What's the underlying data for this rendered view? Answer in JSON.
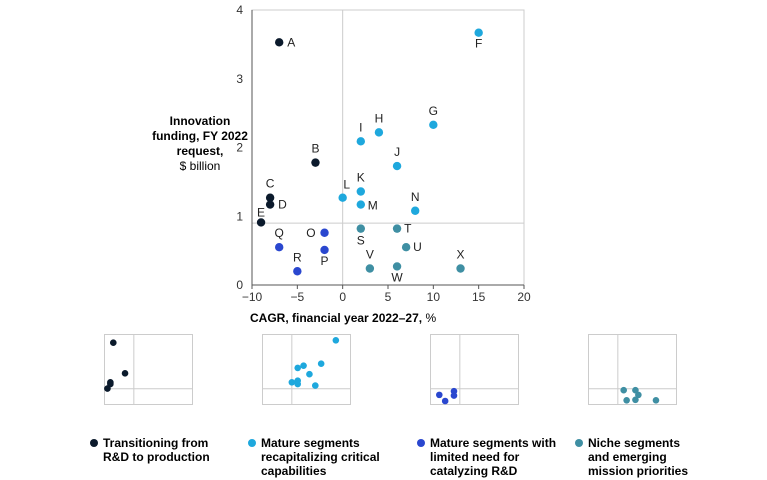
{
  "colors": {
    "transitioning": "#0b1a2c",
    "mature_recap": "#1ea8dd",
    "mature_limited": "#2a47cf",
    "niche": "#3f8fa3",
    "grid": "#cccccc",
    "axis": "#555555"
  },
  "axis_labels": {
    "y_bold": "Innovation funding, FY 2022 request,",
    "y_unit": "$ billion",
    "x_bold": "CAGR, financial year 2022–27,",
    "x_unit": "%"
  },
  "legend": [
    {
      "group": "transitioning",
      "label": "Transitioning from\nR&D to production"
    },
    {
      "group": "mature_recap",
      "label": "Mature segments\nrecapitalizing critical\ncapabilities"
    },
    {
      "group": "mature_limited",
      "label": "Mature segments with\nlimited need for\ncatalyzing R&D"
    },
    {
      "group": "niche",
      "label": "Niche segments\nand emerging\nmission priorities"
    }
  ],
  "chart_data": {
    "type": "scatter",
    "xlabel": "CAGR, financial year 2022–27, %",
    "ylabel": "Innovation funding, FY 2022 request, $ billion",
    "xlim": [
      -10,
      20
    ],
    "ylim": [
      0,
      4
    ],
    "xticks": [
      -10,
      -5,
      0,
      5,
      10,
      15,
      20
    ],
    "yticks": [
      0,
      1,
      2,
      3,
      4
    ],
    "reference_lines": {
      "x": 0,
      "y": 0.9
    },
    "grid": false,
    "points": [
      {
        "label": "A",
        "x": -7,
        "y": 3.53,
        "group": "transitioning"
      },
      {
        "label": "B",
        "x": -3,
        "y": 1.78,
        "group": "transitioning"
      },
      {
        "label": "C",
        "x": -8,
        "y": 1.27,
        "group": "transitioning"
      },
      {
        "label": "D",
        "x": -8,
        "y": 1.17,
        "group": "transitioning"
      },
      {
        "label": "E",
        "x": -9,
        "y": 0.91,
        "group": "transitioning"
      },
      {
        "label": "F",
        "x": 15,
        "y": 3.67,
        "group": "mature_recap"
      },
      {
        "label": "G",
        "x": 10,
        "y": 2.33,
        "group": "mature_recap"
      },
      {
        "label": "H",
        "x": 4,
        "y": 2.22,
        "group": "mature_recap"
      },
      {
        "label": "I",
        "x": 2,
        "y": 2.09,
        "group": "mature_recap"
      },
      {
        "label": "J",
        "x": 6,
        "y": 1.73,
        "group": "mature_recap"
      },
      {
        "label": "K",
        "x": 2,
        "y": 1.36,
        "group": "mature_recap"
      },
      {
        "label": "L",
        "x": 0,
        "y": 1.27,
        "group": "mature_recap"
      },
      {
        "label": "M",
        "x": 2,
        "y": 1.17,
        "group": "mature_recap"
      },
      {
        "label": "N",
        "x": 8,
        "y": 1.08,
        "group": "mature_recap"
      },
      {
        "label": "O",
        "x": -2,
        "y": 0.76,
        "group": "mature_limited"
      },
      {
        "label": "P",
        "x": -2,
        "y": 0.51,
        "group": "mature_limited"
      },
      {
        "label": "Q",
        "x": -7,
        "y": 0.55,
        "group": "mature_limited"
      },
      {
        "label": "R",
        "x": -5,
        "y": 0.2,
        "group": "mature_limited"
      },
      {
        "label": "S",
        "x": 2,
        "y": 0.82,
        "group": "niche"
      },
      {
        "label": "T",
        "x": 6,
        "y": 0.82,
        "group": "niche"
      },
      {
        "label": "U",
        "x": 7,
        "y": 0.55,
        "group": "niche"
      },
      {
        "label": "V",
        "x": 3,
        "y": 0.24,
        "group": "niche"
      },
      {
        "label": "W",
        "x": 6,
        "y": 0.27,
        "group": "niche"
      },
      {
        "label": "X",
        "x": 13,
        "y": 0.24,
        "group": "niche"
      }
    ],
    "small_multiples": [
      "transitioning",
      "mature_recap",
      "mature_limited",
      "niche"
    ]
  }
}
